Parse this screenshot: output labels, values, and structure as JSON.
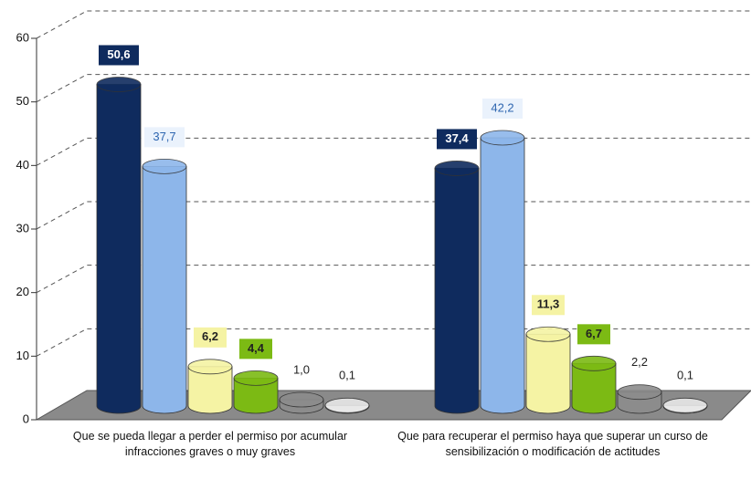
{
  "chart_data": {
    "type": "bar",
    "categories": [
      "Que se pueda llegar a perder el permiso por acumular infracciones graves o muy graves",
      "Que para recuperar el permiso haya que superar un curso de sensibilización o modificación de actitudes"
    ],
    "series": [
      {
        "color": "#0f2b5e",
        "values": [
          50.6,
          37.4
        ],
        "value_labels": [
          "50,6",
          "37,4"
        ]
      },
      {
        "color": "#8db6ea",
        "values": [
          37.7,
          42.2
        ],
        "value_labels": [
          "37,7",
          "42,2"
        ]
      },
      {
        "color": "#f5f3a4",
        "values": [
          6.2,
          11.3
        ],
        "value_labels": [
          "6,2",
          "11,3"
        ]
      },
      {
        "color": "#7cba14",
        "values": [
          4.4,
          6.7
        ],
        "value_labels": [
          "4,4",
          "6,7"
        ]
      },
      {
        "color": "#8c8c8c",
        "values": [
          1.0,
          2.2
        ],
        "value_labels": [
          "1,0",
          "2,2"
        ]
      },
      {
        "color": "#e8e8e8",
        "values": [
          0.1,
          0.1
        ],
        "value_labels": [
          "0,1",
          "0,1"
        ]
      }
    ],
    "ylim": [
      0,
      60
    ],
    "yticks": [
      0,
      10,
      20,
      30,
      40,
      50,
      60
    ],
    "grid": true
  }
}
